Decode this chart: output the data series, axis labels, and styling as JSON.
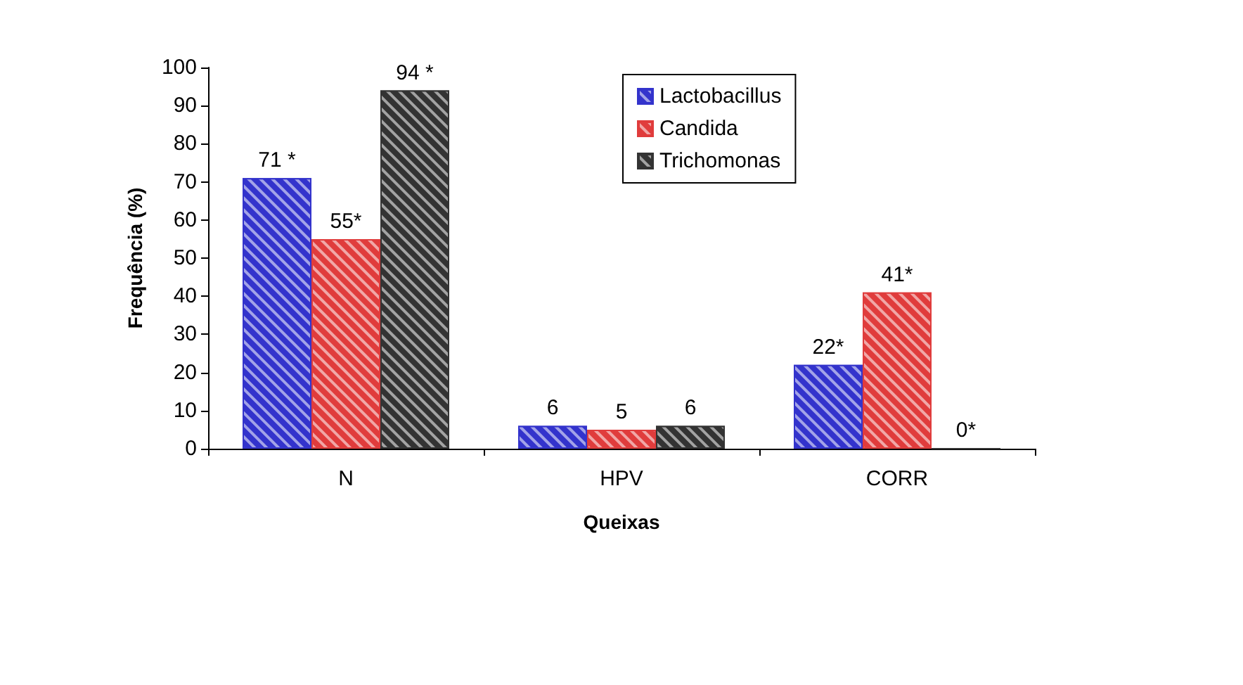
{
  "chart_data": {
    "type": "bar",
    "xlabel": "Queixas",
    "ylabel": "Frequência (%)",
    "categories": [
      "N",
      "HPV",
      "CORR"
    ],
    "series": [
      {
        "name": "Lactobacillus",
        "color": "#3333cc",
        "values": [
          71,
          6,
          22
        ],
        "value_labels": [
          "71 *",
          "6",
          "22*"
        ]
      },
      {
        "name": "Candida",
        "color": "#e03c3c",
        "values": [
          55,
          5,
          41
        ],
        "value_labels": [
          "55*",
          "5",
          "41*"
        ]
      },
      {
        "name": "Trichomonas",
        "color": "#333333",
        "values": [
          94,
          6,
          0
        ],
        "value_labels": [
          "94 *",
          "6",
          "0*"
        ]
      }
    ],
    "ylim": [
      0,
      100
    ],
    "yticks": [
      0,
      10,
      20,
      30,
      40,
      50,
      60,
      70,
      80,
      90,
      100
    ],
    "grid": false,
    "legend": "top"
  }
}
